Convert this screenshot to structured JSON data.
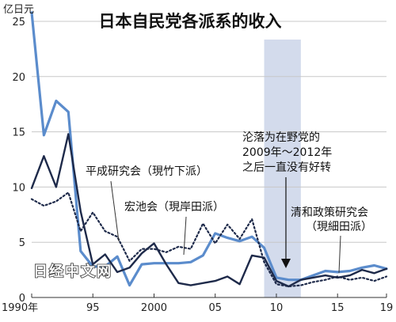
{
  "chart_data": {
    "type": "line",
    "title": "日本自民党各派系的收入",
    "unit_label": "亿日元",
    "x_tick_labels": [
      "1990年",
      "95",
      "2000",
      "05",
      "10",
      "15",
      "19"
    ],
    "x_tick_values": [
      1990,
      1995,
      2000,
      2005,
      2010,
      2015,
      2019
    ],
    "y_ticks": [
      0,
      5,
      10,
      15,
      20,
      25
    ],
    "xlim": [
      1990,
      2019
    ],
    "ylim": [
      0,
      26.5
    ],
    "highlight_range": [
      2009,
      2012
    ],
    "highlight_color": "#d3dbec",
    "callout_lines": [
      "沦落为在野党的",
      "2009年～2012年",
      "之后一直没有好转"
    ],
    "watermark": "日经中文网",
    "series": [
      {
        "name": "清和政策研究会（現細田派）",
        "label_lines": [
          "清和政策研究会",
          "（現細田派）"
        ],
        "color": "#5b8ccc",
        "style": "solid",
        "x": [
          1990,
          1991,
          1992,
          1993,
          1994,
          1995,
          1996,
          1997,
          1998,
          1999,
          2000,
          2001,
          2002,
          2003,
          2004,
          2005,
          2006,
          2007,
          2008,
          2009,
          2010,
          2011,
          2012,
          2013,
          2014,
          2015,
          2016,
          2017,
          2018,
          2019
        ],
        "values": [
          25.8,
          14.7,
          17.8,
          16.8,
          4.2,
          2.8,
          2.8,
          3.7,
          1.1,
          3.0,
          3.1,
          3.1,
          3.1,
          3.2,
          3.8,
          5.8,
          5.4,
          5.1,
          5.5,
          4.5,
          1.8,
          1.6,
          1.6,
          2.0,
          2.4,
          2.3,
          2.4,
          2.7,
          2.9,
          2.6
        ]
      },
      {
        "name": "平成研究会（現竹下派）",
        "label_lines": [
          "平成研究会（現竹下派）"
        ],
        "color": "#1e2a4a",
        "style": "solid",
        "x": [
          1990,
          1991,
          1992,
          1993,
          1994,
          1995,
          1996,
          1997,
          1998,
          1999,
          2000,
          2001,
          2002,
          2003,
          2004,
          2005,
          2006,
          2007,
          2008,
          2009,
          2010,
          2011,
          2012,
          2013,
          2014,
          2015,
          2016,
          2017,
          2018,
          2019
        ],
        "values": [
          9.9,
          12.8,
          10.0,
          14.8,
          7.8,
          3.0,
          3.9,
          2.3,
          2.7,
          4.0,
          4.9,
          3.0,
          1.3,
          1.1,
          1.3,
          1.5,
          1.9,
          1.2,
          3.8,
          3.6,
          1.5,
          1.0,
          1.6,
          1.8,
          2.0,
          1.8,
          2.0,
          2.5,
          2.2,
          2.6
        ]
      },
      {
        "name": "宏池会（現岸田派）",
        "label_lines": [
          "宏池会（現岸田派）"
        ],
        "color": "#1e2a4a",
        "style": "dotted",
        "x": [
          1990,
          1991,
          1992,
          1993,
          1994,
          1995,
          1996,
          1997,
          1998,
          1999,
          2000,
          2001,
          2002,
          2003,
          2004,
          2005,
          2006,
          2007,
          2008,
          2009,
          2010,
          2011,
          2012,
          2013,
          2014,
          2015,
          2016,
          2017,
          2018,
          2019
        ],
        "values": [
          8.9,
          8.3,
          8.7,
          9.5,
          6.0,
          7.7,
          6.0,
          5.5,
          3.3,
          4.4,
          4.4,
          4.1,
          4.6,
          4.4,
          6.7,
          4.9,
          6.6,
          5.3,
          7.1,
          3.2,
          1.2,
          1.0,
          1.1,
          1.4,
          1.6,
          1.9,
          1.6,
          1.8,
          1.5,
          1.9
        ]
      }
    ]
  }
}
